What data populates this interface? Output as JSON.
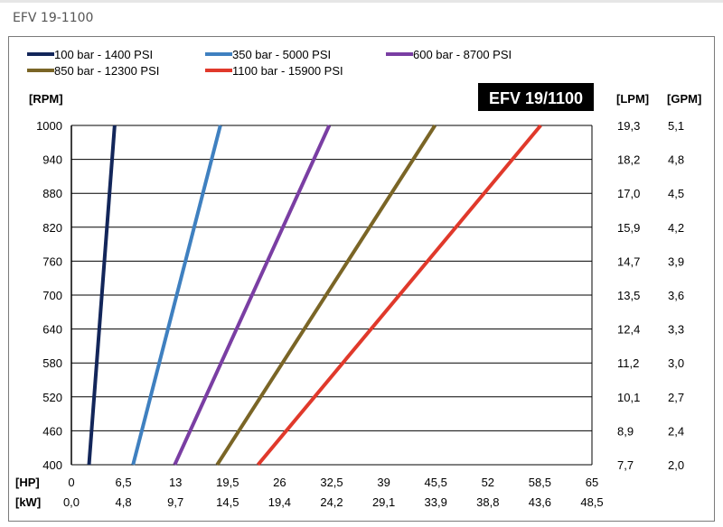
{
  "page": {
    "title": "EFV 19-1100"
  },
  "chart_data": {
    "type": "line",
    "title": "EFV 19/1100",
    "y_label": "[RPM]",
    "x_label_hp": "[HP]",
    "x_label_kw": "[kW]",
    "right_label_lpm": "[LPM]",
    "right_label_gpm": "[GPM]",
    "ylim": [
      400,
      1000
    ],
    "xlim": [
      0,
      65
    ],
    "grid": "horizontal",
    "legend_position": "top",
    "y_ticks": [
      "1000",
      "940",
      "880",
      "820",
      "760",
      "700",
      "640",
      "580",
      "520",
      "460",
      "400"
    ],
    "lpm_ticks": [
      "19,3",
      "18,2",
      "17,0",
      "15,9",
      "14,7",
      "13,5",
      "12,4",
      "11,2",
      "10,1",
      "8,9",
      "7,7"
    ],
    "gpm_ticks": [
      "5,1",
      "4,8",
      "4,5",
      "4,2",
      "3,9",
      "3,6",
      "3,3",
      "3,0",
      "2,7",
      "2,4",
      "2,0"
    ],
    "hp_ticks": [
      "0",
      "6,5",
      "13",
      "19,5",
      "26",
      "32,5",
      "39",
      "45,5",
      "52",
      "58,5",
      "65"
    ],
    "kw_ticks": [
      "0,0",
      "4,8",
      "9,7",
      "14,5",
      "19,4",
      "24,2",
      "29,1",
      "33,9",
      "38,8",
      "43,6",
      "48,5"
    ],
    "series": [
      {
        "name": "100 bar - 1400 PSI",
        "color": "#13265a",
        "points": [
          [
            2.2,
            400
          ],
          [
            5.4,
            1000
          ]
        ]
      },
      {
        "name": "350 bar - 5000 PSI",
        "color": "#3f80c0",
        "points": [
          [
            7.7,
            400
          ],
          [
            18.6,
            1000
          ]
        ]
      },
      {
        "name": "600 bar - 8700 PSI",
        "color": "#7a3ea3",
        "points": [
          [
            12.9,
            400
          ],
          [
            32.2,
            1000
          ]
        ]
      },
      {
        "name": "850 bar - 12300 PSI",
        "color": "#7a6526",
        "points": [
          [
            18.2,
            400
          ],
          [
            45.4,
            1000
          ]
        ]
      },
      {
        "name": "1100 bar - 15900 PSI",
        "color": "#e0392b",
        "points": [
          [
            23.3,
            400
          ],
          [
            58.6,
            1000
          ]
        ]
      }
    ]
  }
}
